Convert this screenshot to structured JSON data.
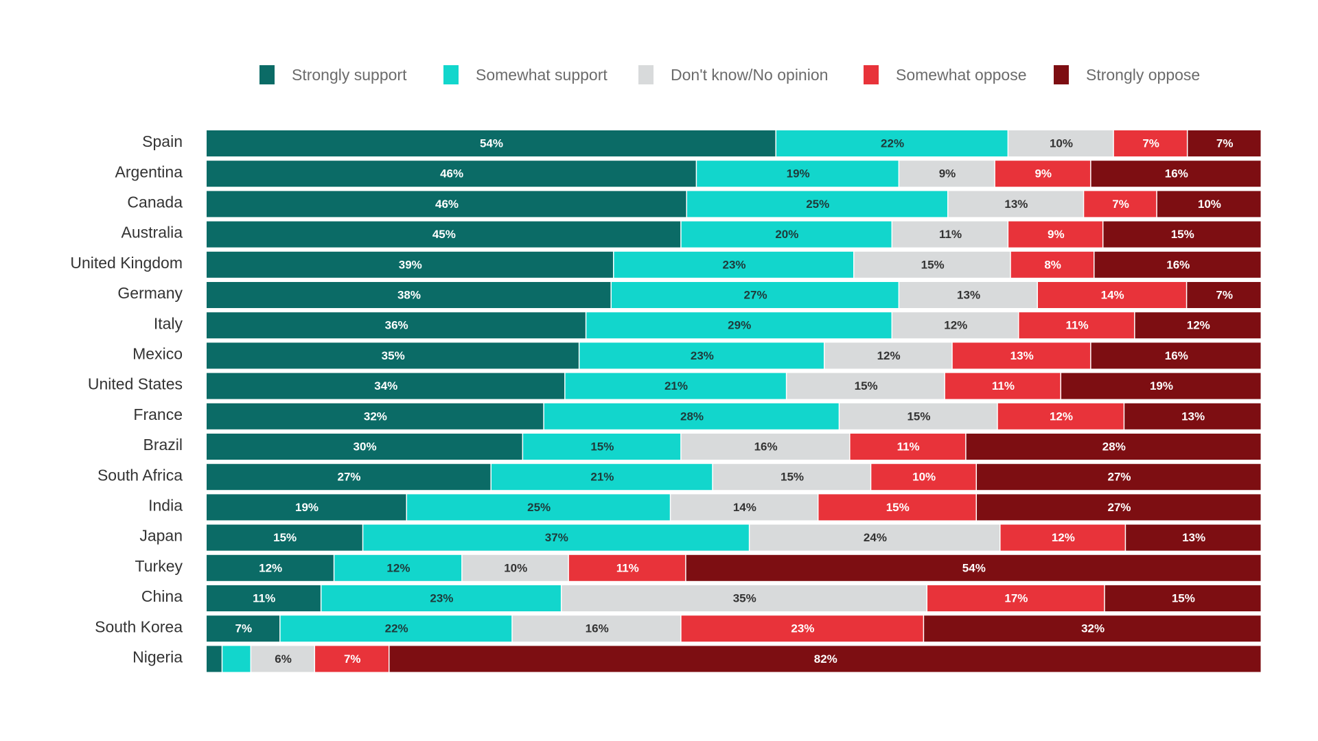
{
  "chart_data": {
    "type": "bar",
    "orientation": "horizontal",
    "stacked": true,
    "legend_position": "top",
    "grid": false,
    "xlim": [
      0,
      100
    ],
    "title": "",
    "xlabel": "",
    "ylabel": "",
    "categories": [
      "Spain",
      "Argentina",
      "Canada",
      "Australia",
      "United Kingdom",
      "Germany",
      "Italy",
      "Mexico",
      "United States",
      "France",
      "Brazil",
      "South Africa",
      "India",
      "Japan",
      "Turkey",
      "China",
      "South Korea",
      "Nigeria"
    ],
    "series": [
      {
        "name": "Strongly support",
        "color": "#0b6b66",
        "text_color": "#ffffff",
        "values": [
          54,
          46,
          46,
          45,
          39,
          38,
          36,
          35,
          34,
          32,
          30,
          27,
          19,
          15,
          12,
          11,
          7,
          1.5
        ],
        "labels": [
          "54%",
          "46%",
          "46%",
          "45%",
          "39%",
          "38%",
          "36%",
          "35%",
          "34%",
          "32%",
          "30%",
          "27%",
          "19%",
          "15%",
          "12%",
          "11%",
          "7%",
          ""
        ]
      },
      {
        "name": "Somewhat support",
        "color": "#12d6cc",
        "text_color": "#1f3a3a",
        "values": [
          22,
          19,
          25,
          20,
          23,
          27,
          29,
          23,
          21,
          28,
          15,
          21,
          25,
          37,
          12,
          23,
          22,
          2.7
        ],
        "labels": [
          "22%",
          "19%",
          "25%",
          "20%",
          "23%",
          "27%",
          "29%",
          "23%",
          "21%",
          "28%",
          "15%",
          "21%",
          "25%",
          "37%",
          "12%",
          "23%",
          "22%",
          ""
        ]
      },
      {
        "name": "Don't know/No opinion",
        "color": "#d8dadb",
        "text_color": "#333333",
        "values": [
          10,
          9,
          13,
          11,
          15,
          13,
          12,
          12,
          15,
          15,
          16,
          15,
          14,
          24,
          10,
          35,
          16,
          6
        ],
        "labels": [
          "10%",
          "9%",
          "13%",
          "11%",
          "15%",
          "13%",
          "12%",
          "12%",
          "15%",
          "15%",
          "16%",
          "15%",
          "14%",
          "24%",
          "10%",
          "35%",
          "16%",
          "6%"
        ]
      },
      {
        "name": "Somewhat oppose",
        "color": "#e8333a",
        "text_color": "#ffffff",
        "values": [
          7,
          9,
          7,
          9,
          8,
          14,
          11,
          13,
          11,
          12,
          11,
          10,
          15,
          12,
          11,
          17,
          23,
          7
        ],
        "labels": [
          "7%",
          "9%",
          "7%",
          "9%",
          "8%",
          "14%",
          "11%",
          "13%",
          "11%",
          "12%",
          "11%",
          "10%",
          "15%",
          "12%",
          "11%",
          "17%",
          "23%",
          "7%"
        ]
      },
      {
        "name": "Strongly oppose",
        "color": "#7d0e12",
        "text_color": "#ffffff",
        "values": [
          7,
          16,
          10,
          15,
          16,
          7,
          12,
          16,
          19,
          13,
          28,
          27,
          27,
          13,
          54,
          15,
          32,
          82
        ],
        "labels": [
          "7%",
          "16%",
          "10%",
          "15%",
          "16%",
          "7%",
          "12%",
          "16%",
          "19%",
          "13%",
          "28%",
          "27%",
          "27%",
          "13%",
          "54%",
          "15%",
          "32%",
          "82%"
        ]
      }
    ]
  }
}
